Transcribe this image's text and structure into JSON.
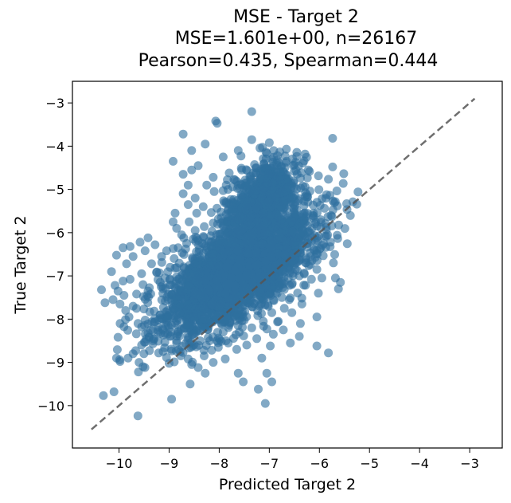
{
  "chart_data": {
    "type": "scatter",
    "title": "MSE - Target 2",
    "subtitle_lines": [
      "MSE=1.601e+00, n=26167",
      "Pearson=0.435, Spearman=0.444"
    ],
    "xlabel": "Predicted Target 2",
    "ylabel": "True Target 2",
    "xlim": [
      -10.93,
      -2.35
    ],
    "ylim": [
      -10.98,
      -2.5
    ],
    "xticks": [
      -10,
      -9,
      -8,
      -7,
      -6,
      -5,
      -4,
      -3
    ],
    "xtick_labels": [
      "−10",
      "−9",
      "−8",
      "−7",
      "−6",
      "−5",
      "−4",
      "−3"
    ],
    "yticks": [
      -10,
      -9,
      -8,
      -7,
      -6,
      -5,
      -4,
      -3
    ],
    "ytick_labels": [
      "−10",
      "−9",
      "−8",
      "−7",
      "−6",
      "−5",
      "−4",
      "−3"
    ],
    "grid": false,
    "legend": "none",
    "point_color": "#2e6f9e",
    "identity_line": {
      "from": [
        -10.55,
        -10.55
      ],
      "to": [
        -2.9,
        -2.9
      ],
      "color": "#555555",
      "style": "dashed"
    },
    "dense_cluster": {
      "description_points_count": 26167,
      "center": [
        -7.6,
        -6.9
      ],
      "main_direction_angle": 0.72
    },
    "outliers": [
      [
        -8.07,
        -3.42
      ],
      [
        -8.04,
        -3.47
      ],
      [
        -7.35,
        -3.2
      ],
      [
        -8.72,
        -3.72
      ],
      [
        -8.28,
        -3.95
      ],
      [
        -7.92,
        -4.25
      ],
      [
        -7.62,
        -4.1
      ],
      [
        -7.35,
        -3.85
      ],
      [
        -8.55,
        -4.1
      ],
      [
        -8.42,
        -4.45
      ],
      [
        -8.55,
        -4.55
      ],
      [
        -8.72,
        -4.65
      ],
      [
        -8.92,
        -4.35
      ],
      [
        -8.62,
        -4.9
      ],
      [
        -8.72,
        -5.1
      ],
      [
        -8.48,
        -5.2
      ],
      [
        -8.62,
        -5.35
      ],
      [
        -8.88,
        -5.55
      ],
      [
        -8.92,
        -5.75
      ],
      [
        -8.85,
        -5.9
      ],
      [
        -8.75,
        -6.05
      ],
      [
        -6.22,
        -4.55
      ],
      [
        -6.25,
        -5.12
      ],
      [
        -6.12,
        -5.55
      ],
      [
        -6.25,
        -6.25
      ],
      [
        -6.05,
        -5.85
      ],
      [
        -6.18,
        -6.55
      ],
      [
        -6.05,
        -6.85
      ],
      [
        -5.78,
        -6.22
      ],
      [
        -5.72,
        -6.7
      ],
      [
        -5.68,
        -7.05
      ],
      [
        -5.58,
        -7.15
      ],
      [
        -5.62,
        -7.3
      ],
      [
        -5.95,
        -7.05
      ],
      [
        -6.02,
        -7.4
      ],
      [
        -6.05,
        -7.95
      ],
      [
        -6.4,
        -7.0
      ],
      [
        -6.35,
        -7.65
      ],
      [
        -6.38,
        -8.1
      ],
      [
        -6.4,
        -8.4
      ],
      [
        -6.58,
        -8.55
      ],
      [
        -6.05,
        -8.62
      ],
      [
        -5.82,
        -8.78
      ],
      [
        -6.92,
        -8.35
      ],
      [
        -6.98,
        -8.62
      ],
      [
        -7.15,
        -8.9
      ],
      [
        -7.05,
        -9.25
      ],
      [
        -6.95,
        -9.45
      ],
      [
        -7.22,
        -9.62
      ],
      [
        -7.08,
        -9.95
      ],
      [
        -7.62,
        -9.25
      ],
      [
        -7.52,
        -9.45
      ],
      [
        -7.88,
        -8.92
      ],
      [
        -8.12,
        -9.0
      ],
      [
        -8.42,
        -9.12
      ],
      [
        -8.55,
        -9.05
      ],
      [
        -8.62,
        -8.92
      ],
      [
        -8.28,
        -9.25
      ],
      [
        -8.58,
        -9.5
      ],
      [
        -8.95,
        -9.85
      ],
      [
        -9.0,
        -9.02
      ],
      [
        -9.12,
        -8.75
      ],
      [
        -9.32,
        -8.5
      ],
      [
        -9.02,
        -8.15
      ],
      [
        -9.18,
        -7.9
      ],
      [
        -9.42,
        -8.32
      ],
      [
        -9.55,
        -8.6
      ],
      [
        -9.72,
        -8.8
      ],
      [
        -9.6,
        -9.0
      ],
      [
        -9.52,
        -9.1
      ],
      [
        -9.62,
        -8.1
      ],
      [
        -9.8,
        -7.95
      ],
      [
        -9.72,
        -7.7
      ],
      [
        -9.98,
        -7.65
      ],
      [
        -9.9,
        -7.45
      ],
      [
        -10.12,
        -7.55
      ],
      [
        -10.28,
        -7.62
      ],
      [
        -10.35,
        -7.32
      ],
      [
        -10.08,
        -7.22
      ],
      [
        -9.92,
        -7.12
      ],
      [
        -10.02,
        -7.35
      ],
      [
        -9.78,
        -7.08
      ],
      [
        -9.52,
        -7.2
      ],
      [
        -9.65,
        -7.42
      ],
      [
        -9.42,
        -7.35
      ],
      [
        -9.55,
        -6.95
      ],
      [
        -9.85,
        -6.72
      ],
      [
        -9.72,
        -6.55
      ],
      [
        -9.48,
        -6.42
      ],
      [
        -9.58,
        -6.22
      ],
      [
        -9.42,
        -6.12
      ],
      [
        -9.78,
        -6.32
      ],
      [
        -9.92,
        -6.35
      ],
      [
        -10.05,
        -6.52
      ],
      [
        -10.15,
        -6.9
      ],
      [
        -9.35,
        -6.72
      ],
      [
        -9.25,
        -6.92
      ],
      [
        -9.15,
        -6.55
      ],
      [
        -9.28,
        -6.28
      ],
      [
        -9.05,
        -6.42
      ],
      [
        -10.02,
        -8.42
      ],
      [
        -10.05,
        -8.9
      ],
      [
        -9.98,
        -8.98
      ],
      [
        -10.1,
        -9.68
      ],
      [
        -9.82,
        -8.9
      ],
      [
        -8.85,
        -8.55
      ],
      [
        -8.78,
        -8.75
      ],
      [
        -8.98,
        -8.4
      ],
      [
        -9.12,
        -8.25
      ],
      [
        -8.3,
        -8.85
      ],
      [
        -8.15,
        -8.72
      ],
      [
        -7.82,
        -8.55
      ],
      [
        -7.65,
        -8.7
      ],
      [
        -7.45,
        -8.6
      ],
      [
        -7.25,
        -8.45
      ],
      [
        -6.72,
        -8.25
      ],
      [
        -6.82,
        -8.05
      ],
      [
        -6.55,
        -7.85
      ],
      [
        -6.6,
        -7.55
      ],
      [
        -6.7,
        -7.75
      ],
      [
        -6.45,
        -6.45
      ],
      [
        -6.38,
        -6.05
      ],
      [
        -6.32,
        -5.72
      ],
      [
        -6.52,
        -5.35
      ],
      [
        -6.68,
        -5.05
      ],
      [
        -6.62,
        -4.75
      ],
      [
        -6.78,
        -4.6
      ],
      [
        -6.95,
        -4.3
      ],
      [
        -7.05,
        -4.5
      ],
      [
        -7.55,
        -4.55
      ],
      [
        -7.8,
        -4.62
      ],
      [
        -8.12,
        -4.72
      ],
      [
        -8.25,
        -4.9
      ],
      [
        -8.1,
        -5.05
      ],
      [
        -8.32,
        -5.4
      ],
      [
        -8.45,
        -5.55
      ],
      [
        -8.6,
        -5.75
      ],
      [
        -8.48,
        -5.95
      ],
      [
        -8.52,
        -6.15
      ],
      [
        -8.65,
        -6.25
      ],
      [
        -8.82,
        -6.35
      ],
      [
        -8.9,
        -6.6
      ],
      [
        -8.98,
        -6.8
      ],
      [
        -9.08,
        -7.05
      ],
      [
        -9.12,
        -7.3
      ],
      [
        -9.02,
        -7.55
      ],
      [
        -8.92,
        -7.75
      ],
      [
        -8.8,
        -8.0
      ],
      [
        -8.68,
        -8.2
      ],
      [
        -8.52,
        -8.35
      ],
      [
        -8.38,
        -8.5
      ],
      [
        -8.05,
        -8.5
      ],
      [
        -7.92,
        -8.3
      ],
      [
        -7.6,
        -8.3
      ],
      [
        -7.35,
        -8.2
      ],
      [
        -7.12,
        -8.05
      ],
      [
        -6.95,
        -7.85
      ],
      [
        -6.75,
        -7.5
      ],
      [
        -6.55,
        -7.2
      ],
      [
        -6.48,
        -6.85
      ]
    ]
  }
}
